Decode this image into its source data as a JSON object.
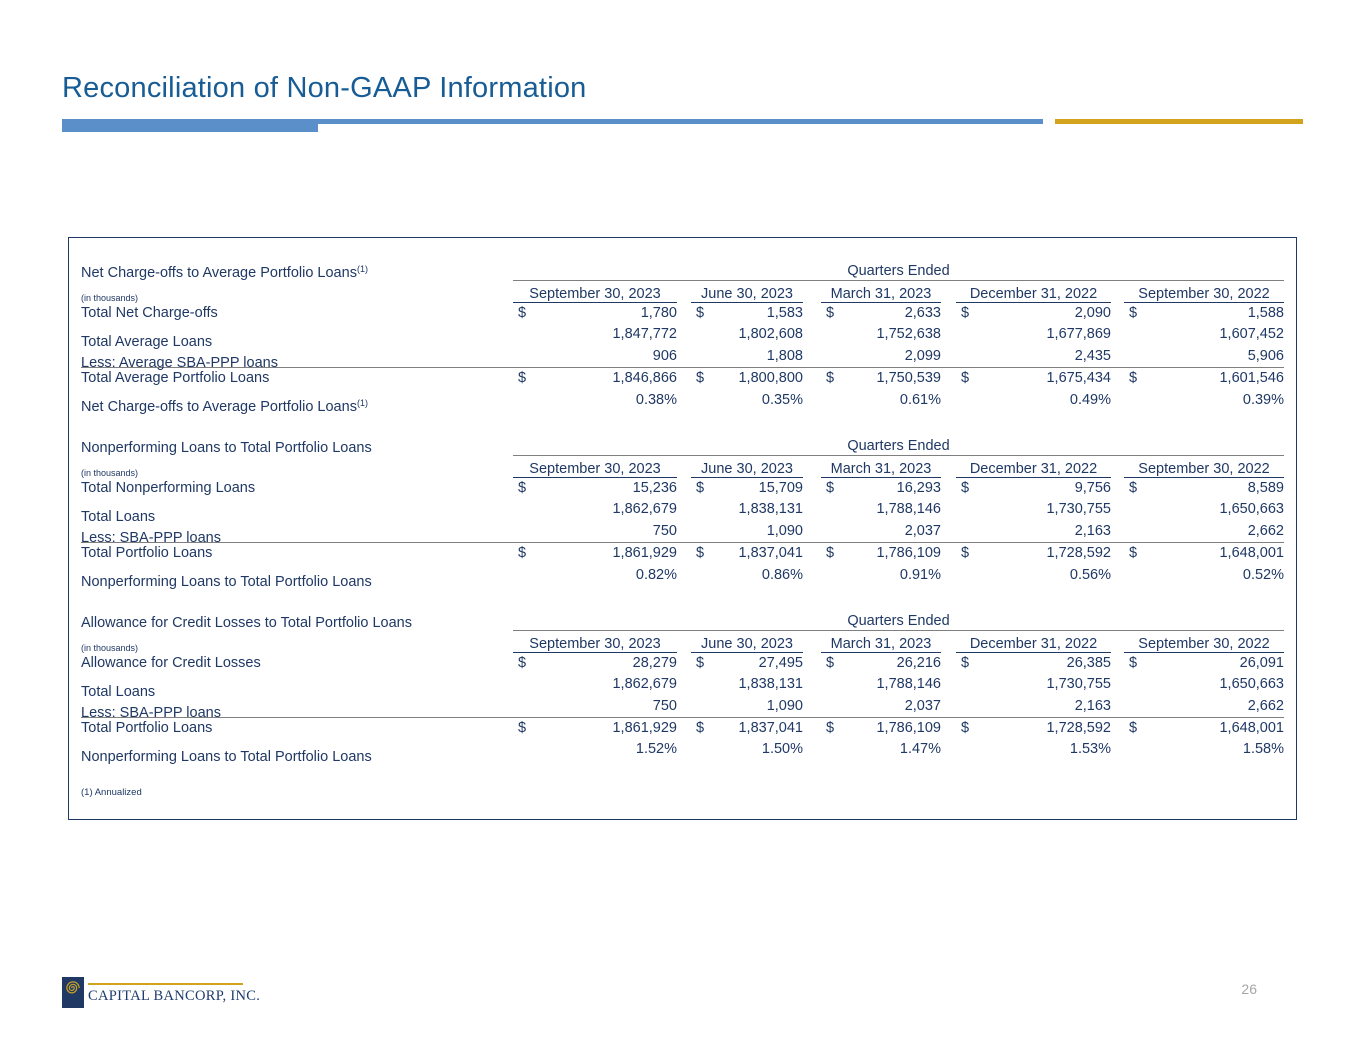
{
  "slide": {
    "title": "Reconciliation of Non-GAAP Information",
    "page_number": "26",
    "footnote": "(1) Annualized"
  },
  "colors": {
    "accent_blue": "#5B8FC9",
    "accent_gold": "#D2A41D",
    "navy_text": "#1F3864",
    "title_blue": "#175C94",
    "line_gray": "#7F7F7F",
    "page_number_gray": "#A6A6A6"
  },
  "footer": {
    "logo_icon": "spiral-icon",
    "logo_text": "CAPITAL BANCORP, INC."
  },
  "tables": [
    {
      "title": "Net Charge-offs to Average Portfolio Loans",
      "sup": "(1)",
      "subtitle": "(in thousands)",
      "span_header": "Quarters Ended",
      "columns": [
        "September 30, 2023",
        "June 30, 2023",
        "March 31, 2023",
        "December 31, 2022",
        "September 30, 2022"
      ],
      "rows": [
        {
          "label": "Total Net Charge-offs",
          "dollar": true,
          "underline": false,
          "values": [
            "1,780",
            "1,583",
            "2,633",
            "2,090",
            "1,588"
          ]
        },
        {
          "label": "Total Average Loans",
          "dollar": false,
          "underline": false,
          "values": [
            "1,847,772",
            "1,802,608",
            "1,752,638",
            "1,677,869",
            "1,607,452"
          ]
        },
        {
          "label": "Less: Average SBA-PPP loans",
          "dollar": false,
          "underline": true,
          "values": [
            "906",
            "1,808",
            "2,099",
            "2,435",
            "5,906"
          ]
        },
        {
          "label": "Total Average Portfolio Loans",
          "dollar": true,
          "underline": false,
          "values": [
            "1,846,866",
            "1,800,800",
            "1,750,539",
            "1,675,434",
            "1,601,546"
          ]
        },
        {
          "label": "Net Charge-offs to Average Portfolio Loans",
          "sup": "(1)",
          "dollar": false,
          "underline": false,
          "values": [
            "0.38%",
            "0.35%",
            "0.61%",
            "0.49%",
            "0.39%"
          ]
        }
      ]
    },
    {
      "title": "Nonperforming Loans to Total Portfolio Loans",
      "subtitle": "(in thousands)",
      "span_header": "Quarters Ended",
      "columns": [
        "September 30, 2023",
        "June 30, 2023",
        "March 31, 2023",
        "December 31, 2022",
        "September 30, 2022"
      ],
      "rows": [
        {
          "label": "Total Nonperforming Loans",
          "dollar": true,
          "underline": false,
          "values": [
            "15,236",
            "15,709",
            "16,293",
            "9,756",
            "8,589"
          ]
        },
        {
          "label": "Total Loans",
          "dollar": false,
          "underline": false,
          "values": [
            "1,862,679",
            "1,838,131",
            "1,788,146",
            "1,730,755",
            "1,650,663"
          ]
        },
        {
          "label": "Less: SBA-PPP loans",
          "dollar": false,
          "underline": true,
          "values": [
            "750",
            "1,090",
            "2,037",
            "2,163",
            "2,662"
          ]
        },
        {
          "label": "Total Portfolio Loans",
          "dollar": true,
          "underline": false,
          "values": [
            "1,861,929",
            "1,837,041",
            "1,786,109",
            "1,728,592",
            "1,648,001"
          ]
        },
        {
          "label": "Nonperforming Loans to Total Portfolio Loans",
          "dollar": false,
          "underline": false,
          "values": [
            "0.82%",
            "0.86%",
            "0.91%",
            "0.56%",
            "0.52%"
          ]
        }
      ]
    },
    {
      "title": "Allowance for Credit Losses to Total Portfolio Loans",
      "subtitle": "(in thousands)",
      "span_header": "Quarters Ended",
      "columns": [
        "September 30, 2023",
        "June 30, 2023",
        "March 31, 2023",
        "December 31, 2022",
        "September 30, 2022"
      ],
      "rows": [
        {
          "label": "Allowance for Credit Losses",
          "dollar": true,
          "underline": false,
          "values": [
            "28,279",
            "27,495",
            "26,216",
            "26,385",
            "26,091"
          ]
        },
        {
          "label": "Total Loans",
          "dollar": false,
          "underline": false,
          "values": [
            "1,862,679",
            "1,838,131",
            "1,788,146",
            "1,730,755",
            "1,650,663"
          ]
        },
        {
          "label": "Less: SBA-PPP loans",
          "dollar": false,
          "underline": true,
          "values": [
            "750",
            "1,090",
            "2,037",
            "2,163",
            "2,662"
          ]
        },
        {
          "label": "Total Portfolio Loans",
          "dollar": true,
          "underline": false,
          "values": [
            "1,861,929",
            "1,837,041",
            "1,786,109",
            "1,728,592",
            "1,648,001"
          ]
        },
        {
          "label": "Nonperforming Loans to Total Portfolio Loans",
          "dollar": false,
          "underline": false,
          "values": [
            "1.52%",
            "1.50%",
            "1.47%",
            "1.53%",
            "1.58%"
          ]
        }
      ]
    }
  ]
}
